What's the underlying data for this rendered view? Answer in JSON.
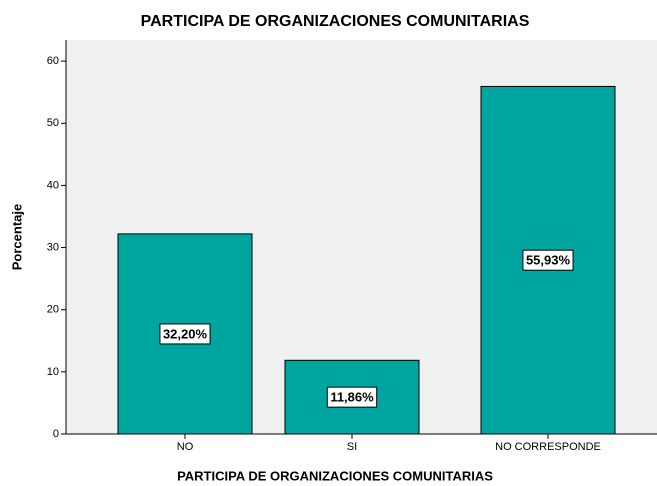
{
  "chart_data": {
    "type": "bar",
    "title": "PARTICIPA DE ORGANIZACIONES COMUNITARIAS",
    "x_label": "PARTICIPA DE ORGANIZACIONES COMUNITARIAS",
    "y_label": "Porcentaje",
    "categories": [
      "NO",
      "SI",
      "NO CORRESPONDE"
    ],
    "values": [
      32.2,
      11.86,
      55.93
    ],
    "value_labels": [
      "32,20%",
      "11,86%",
      "55,93%"
    ],
    "color": "#00a5a0",
    "ylim": [
      0,
      63.4
    ],
    "yticks": [
      0,
      10,
      20,
      30,
      40,
      50,
      60
    ]
  }
}
